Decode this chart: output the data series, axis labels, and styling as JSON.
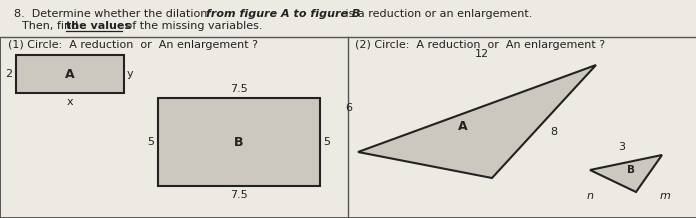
{
  "bg_color": "#ede9e3",
  "rect_fill": "#ccc8c0",
  "rect_edge": "#222222",
  "tri_fill": "#ccc8c0",
  "tri_edge": "#222222",
  "text_color": "#222222",
  "panel_line_color": "#555555",
  "title_plain1": "8.  Determine whether the dilation ",
  "title_bold": "from figure A to figure B",
  "title_plain2": " is a reduction or an enlargement.",
  "line2_plain1": "Then, find ",
  "line2_underline": "the values",
  "line2_plain2": " of the missing variables.",
  "panel1_text": "(1) Circle:  A reduction  or  An enlargement ?",
  "panel2_text": "(2) Circle:  A reduction  or  An enlargement ?"
}
